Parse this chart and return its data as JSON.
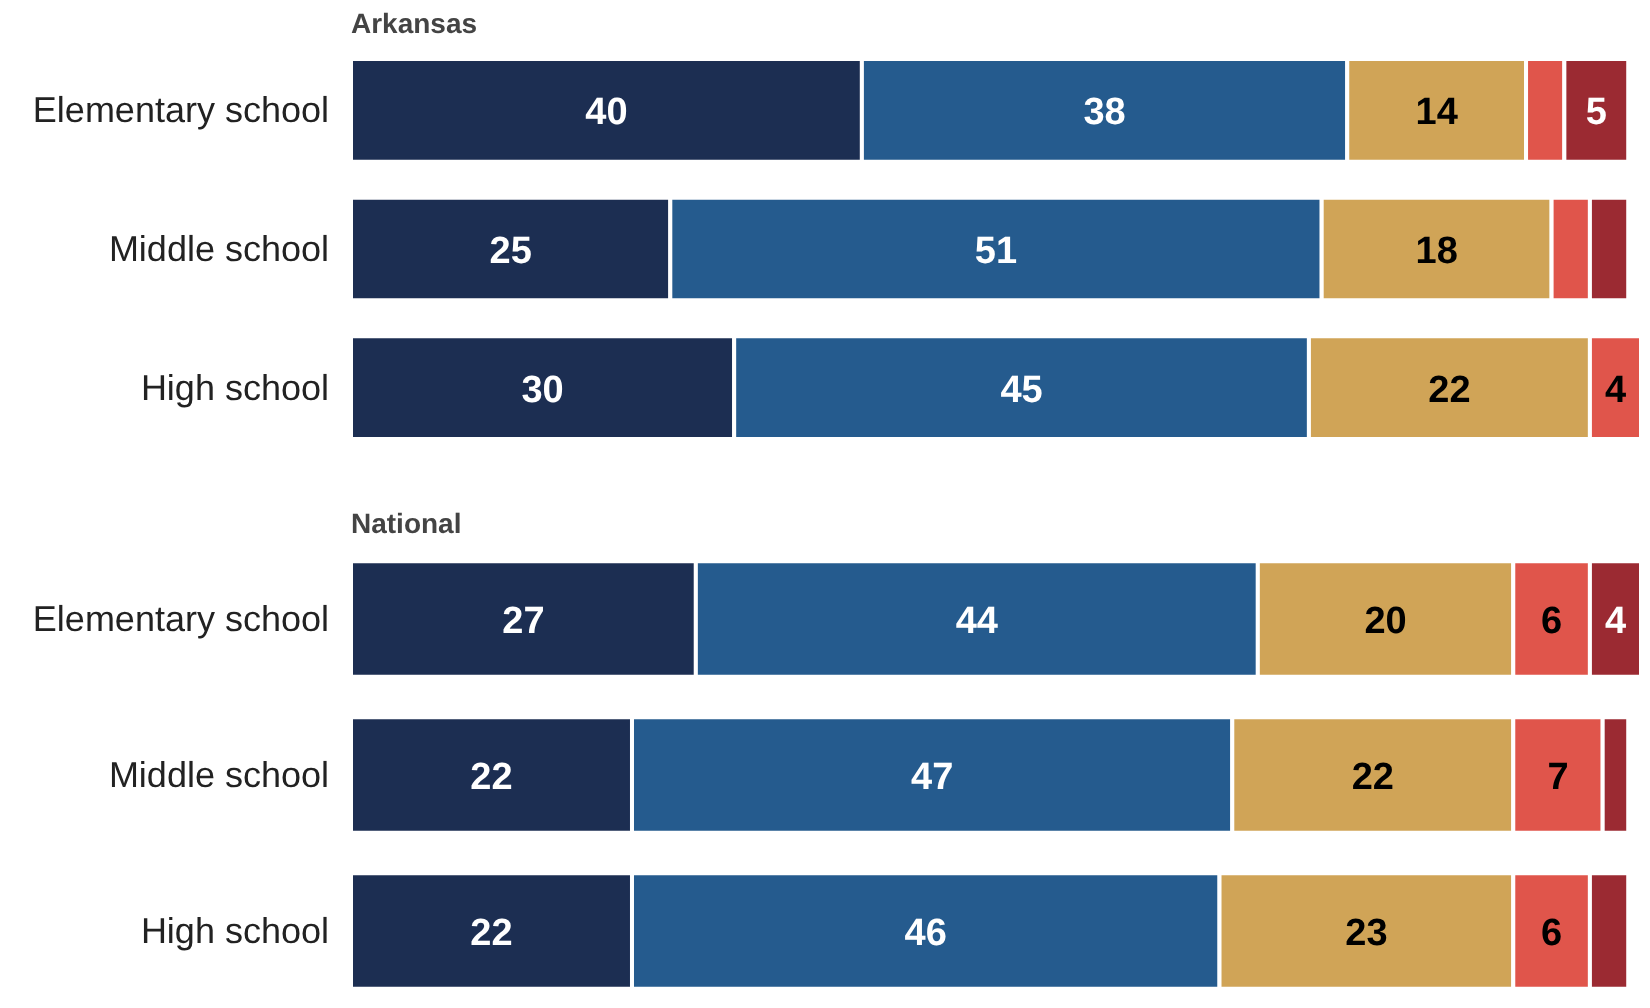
{
  "chart_data": [
    {
      "type": "bar",
      "orientation": "horizontal",
      "stacked": true,
      "title": "Arkansas",
      "categories": [
        "Elementary school",
        "Middle school",
        "High school"
      ],
      "grid": false,
      "tick_labels": "y",
      "series": [
        {
          "color": "#1c2e52",
          "values": [
            40,
            25,
            30
          ],
          "value_labels": [
            "40",
            "25",
            "30"
          ]
        },
        {
          "color": "#255b8e",
          "values": [
            38,
            51,
            45
          ],
          "value_labels": [
            "38",
            "51",
            "45"
          ]
        },
        {
          "color": "#d0a457",
          "values": [
            14,
            18,
            22
          ],
          "value_labels": [
            "14",
            "18",
            "22"
          ]
        },
        {
          "color": "#e0554b",
          "values": [
            3,
            3,
            4
          ],
          "value_labels": [
            null,
            null,
            "4"
          ]
        },
        {
          "color": "#9b2a32",
          "values": [
            5,
            3,
            null
          ],
          "value_labels": [
            "5",
            null,
            null
          ]
        }
      ]
    },
    {
      "type": "bar",
      "orientation": "horizontal",
      "stacked": true,
      "title": "National",
      "categories": [
        "Elementary school",
        "Middle school",
        "High school"
      ],
      "grid": false,
      "tick_labels": "y",
      "series": [
        {
          "color": "#1c2e52",
          "values": [
            27,
            22,
            22
          ],
          "value_labels": [
            "27",
            "22",
            "22"
          ]
        },
        {
          "color": "#255b8e",
          "values": [
            44,
            47,
            46
          ],
          "value_labels": [
            "44",
            "47",
            "46"
          ]
        },
        {
          "color": "#d0a457",
          "values": [
            20,
            22,
            23
          ],
          "value_labels": [
            "20",
            "22",
            "23"
          ]
        },
        {
          "color": "#e0554b",
          "values": [
            6,
            7,
            6
          ],
          "value_labels": [
            "6",
            "7",
            "6"
          ]
        },
        {
          "color": "#9b2a32",
          "values": [
            4,
            2,
            3
          ],
          "value_labels": [
            "4",
            null,
            null
          ]
        }
      ]
    }
  ]
}
